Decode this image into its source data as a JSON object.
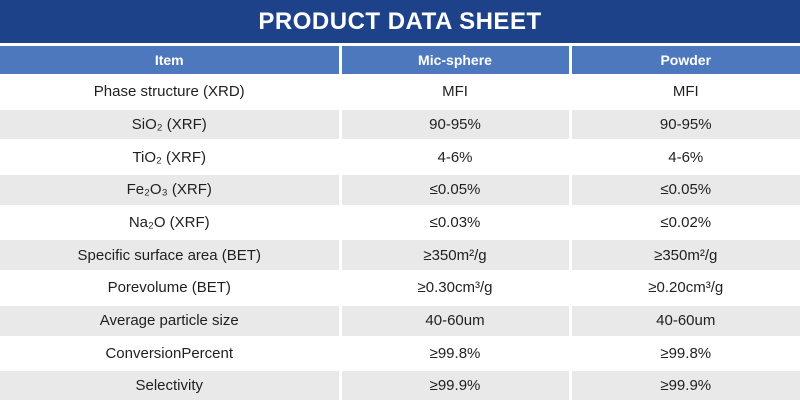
{
  "title": "PRODUCT DATA SHEET",
  "colors": {
    "title_bg": "#1d4289",
    "header_bg": "#4e78bd",
    "row_bg": "#ffffff",
    "row_alt_bg": "#e9e9e9",
    "header_text": "#ffffff",
    "body_text": "#1f1f1f"
  },
  "table": {
    "columns": [
      "Item",
      "Mic-sphere",
      "Powder"
    ],
    "rows": [
      {
        "item": "Phase structure (XRD)",
        "mic_sphere": "MFI",
        "powder": "MFI"
      },
      {
        "item": "SiO₂ (XRF)",
        "mic_sphere": "90-95%",
        "powder": "90-95%"
      },
      {
        "item": "TiO₂ (XRF)",
        "mic_sphere": "4-6%",
        "powder": "4-6%"
      },
      {
        "item": "Fe₂O₃ (XRF)",
        "mic_sphere": "≤0.05%",
        "powder": "≤0.05%"
      },
      {
        "item": "Na₂O (XRF)",
        "mic_sphere": "≤0.03%",
        "powder": "≤0.02%"
      },
      {
        "item": "Specific surface area (BET)",
        "mic_sphere": "≥350m²/g",
        "powder": "≥350m²/g"
      },
      {
        "item": "Porevolume (BET)",
        "mic_sphere": "≥0.30cm³/g",
        "powder": "≥0.20cm³/g"
      },
      {
        "item": "Average particle size",
        "mic_sphere": "40-60um",
        "powder": "40-60um"
      },
      {
        "item": "ConversionPercent",
        "mic_sphere": "≥99.8%",
        "powder": "≥99.8%"
      },
      {
        "item": "Selectivity",
        "mic_sphere": "≥99.9%",
        "powder": "≥99.9%"
      }
    ]
  }
}
